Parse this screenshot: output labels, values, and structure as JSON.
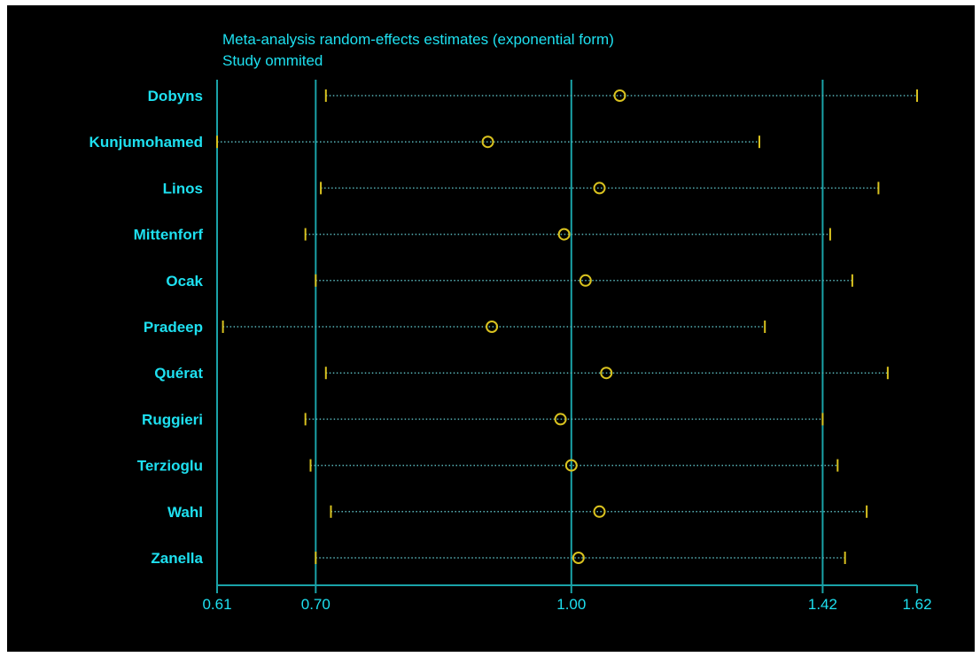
{
  "chart_data": {
    "type": "scatter",
    "title": "Meta-analysis random-effects estimates (exponential form)",
    "subtitle": "Study ommited",
    "xscale": "log",
    "xlim": [
      0.61,
      1.62
    ],
    "xticks": [
      0.61,
      0.7,
      1.0,
      1.42,
      1.62
    ],
    "xtick_labels": [
      "0.61",
      "0.70",
      "1.00",
      "1.42",
      "1.62"
    ],
    "reference_lines": [
      0.61,
      0.7,
      1.0,
      1.42
    ],
    "studies": [
      {
        "label": "Dobyns",
        "estimate": 1.07,
        "lower": 0.71,
        "upper": 1.62
      },
      {
        "label": "Kunjumohamed",
        "estimate": 0.89,
        "lower": 0.61,
        "upper": 1.3
      },
      {
        "label": "Linos",
        "estimate": 1.04,
        "lower": 0.705,
        "upper": 1.535
      },
      {
        "label": "Mittenforf",
        "estimate": 0.99,
        "lower": 0.69,
        "upper": 1.435
      },
      {
        "label": "Ocak",
        "estimate": 1.02,
        "lower": 0.7,
        "upper": 1.48
      },
      {
        "label": "Pradeep",
        "estimate": 0.895,
        "lower": 0.615,
        "upper": 1.31
      },
      {
        "label": "Quérat",
        "estimate": 1.05,
        "lower": 0.71,
        "upper": 1.555
      },
      {
        "label": "Ruggieri",
        "estimate": 0.985,
        "lower": 0.69,
        "upper": 1.42
      },
      {
        "label": "Terzioglu",
        "estimate": 1.0,
        "lower": 0.695,
        "upper": 1.45
      },
      {
        "label": "Wahl",
        "estimate": 1.04,
        "lower": 0.715,
        "upper": 1.51
      },
      {
        "label": "Zanella",
        "estimate": 1.01,
        "lower": 0.7,
        "upper": 1.465
      }
    ],
    "grid": false,
    "colors": {
      "background": "#000000",
      "text": "#1ee0f0",
      "reference_line": "#1aa3a8",
      "marker": "#d9c21f",
      "ci_line": "#57b3b8"
    }
  }
}
